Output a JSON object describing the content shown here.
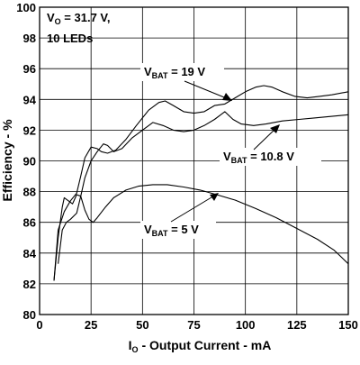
{
  "chart_data": {
    "type": "line",
    "xlabel": {
      "main": "I",
      "sub": "O",
      "rest": " - Output Current - mA"
    },
    "ylabel": "Efficiency - %",
    "xlim": [
      0,
      150
    ],
    "ylim": [
      80,
      100
    ],
    "xticks": [
      0,
      25,
      50,
      75,
      100,
      125,
      150
    ],
    "yticks": [
      80,
      82,
      84,
      86,
      88,
      90,
      92,
      94,
      96,
      98,
      100
    ],
    "grid": true,
    "annotations": {
      "conditions_line1": {
        "main": "V",
        "sub": "O",
        "rest": " = 31.7 V,"
      },
      "conditions_line2": "10 LEDs"
    },
    "series": [
      {
        "name": {
          "main": "V",
          "sub": "BAT",
          "rest": " = 19 V"
        },
        "points": [
          [
            7,
            82.2
          ],
          [
            9,
            85.5
          ],
          [
            12,
            86.7
          ],
          [
            15,
            87.4
          ],
          [
            18,
            87.9
          ],
          [
            20,
            89.0
          ],
          [
            22,
            90.2
          ],
          [
            25,
            90.9
          ],
          [
            28,
            90.8
          ],
          [
            30,
            90.6
          ],
          [
            33,
            90.5
          ],
          [
            37,
            90.7
          ],
          [
            42,
            91.4
          ],
          [
            47,
            92.3
          ],
          [
            53,
            93.3
          ],
          [
            58,
            93.8
          ],
          [
            61,
            93.9
          ],
          [
            65,
            93.6
          ],
          [
            70,
            93.2
          ],
          [
            75,
            93.1
          ],
          [
            80,
            93.2
          ],
          [
            85,
            93.6
          ],
          [
            90,
            93.7
          ],
          [
            95,
            94.1
          ],
          [
            100,
            94.5
          ],
          [
            105,
            94.8
          ],
          [
            109,
            94.9
          ],
          [
            113,
            94.8
          ],
          [
            118,
            94.5
          ],
          [
            124,
            94.2
          ],
          [
            130,
            94.1
          ],
          [
            136,
            94.2
          ],
          [
            142,
            94.3
          ],
          [
            150,
            94.5
          ]
        ]
      },
      {
        "name": {
          "main": "V",
          "sub": "BAT",
          "rest": " = 10.8 V"
        },
        "points": [
          [
            9,
            83.3
          ],
          [
            11,
            85.5
          ],
          [
            13,
            86.0
          ],
          [
            15,
            86.2
          ],
          [
            18,
            86.6
          ],
          [
            20,
            87.7
          ],
          [
            22,
            88.9
          ],
          [
            25,
            90.0
          ],
          [
            28,
            90.6
          ],
          [
            31,
            91.1
          ],
          [
            33,
            91.0
          ],
          [
            36,
            90.6
          ],
          [
            40,
            90.8
          ],
          [
            45,
            91.5
          ],
          [
            50,
            92.0
          ],
          [
            55,
            92.5
          ],
          [
            60,
            92.3
          ],
          [
            65,
            92.0
          ],
          [
            70,
            91.9
          ],
          [
            75,
            92.0
          ],
          [
            80,
            92.3
          ],
          [
            85,
            92.7
          ],
          [
            90,
            93.2
          ],
          [
            94,
            92.7
          ],
          [
            98,
            92.4
          ],
          [
            104,
            92.3
          ],
          [
            110,
            92.4
          ],
          [
            118,
            92.6
          ],
          [
            126,
            92.7
          ],
          [
            134,
            92.8
          ],
          [
            142,
            92.9
          ],
          [
            150,
            93.0
          ]
        ]
      },
      {
        "name": {
          "main": "V",
          "sub": "BAT",
          "rest": " = 5 V"
        },
        "points": [
          [
            7,
            82.2
          ],
          [
            9,
            85.0
          ],
          [
            11,
            87.0
          ],
          [
            12,
            87.6
          ],
          [
            14,
            87.4
          ],
          [
            16,
            87.2
          ],
          [
            18,
            87.8
          ],
          [
            20,
            87.7
          ],
          [
            22,
            86.8
          ],
          [
            24,
            86.2
          ],
          [
            26,
            86.0
          ],
          [
            28,
            86.3
          ],
          [
            32,
            87.0
          ],
          [
            36,
            87.6
          ],
          [
            42,
            88.1
          ],
          [
            48,
            88.35
          ],
          [
            55,
            88.45
          ],
          [
            62,
            88.45
          ],
          [
            70,
            88.3
          ],
          [
            78,
            88.1
          ],
          [
            86,
            87.8
          ],
          [
            95,
            87.45
          ],
          [
            105,
            86.9
          ],
          [
            115,
            86.3
          ],
          [
            125,
            85.6
          ],
          [
            135,
            84.9
          ],
          [
            143,
            84.2
          ],
          [
            150,
            83.3
          ]
        ]
      }
    ]
  }
}
